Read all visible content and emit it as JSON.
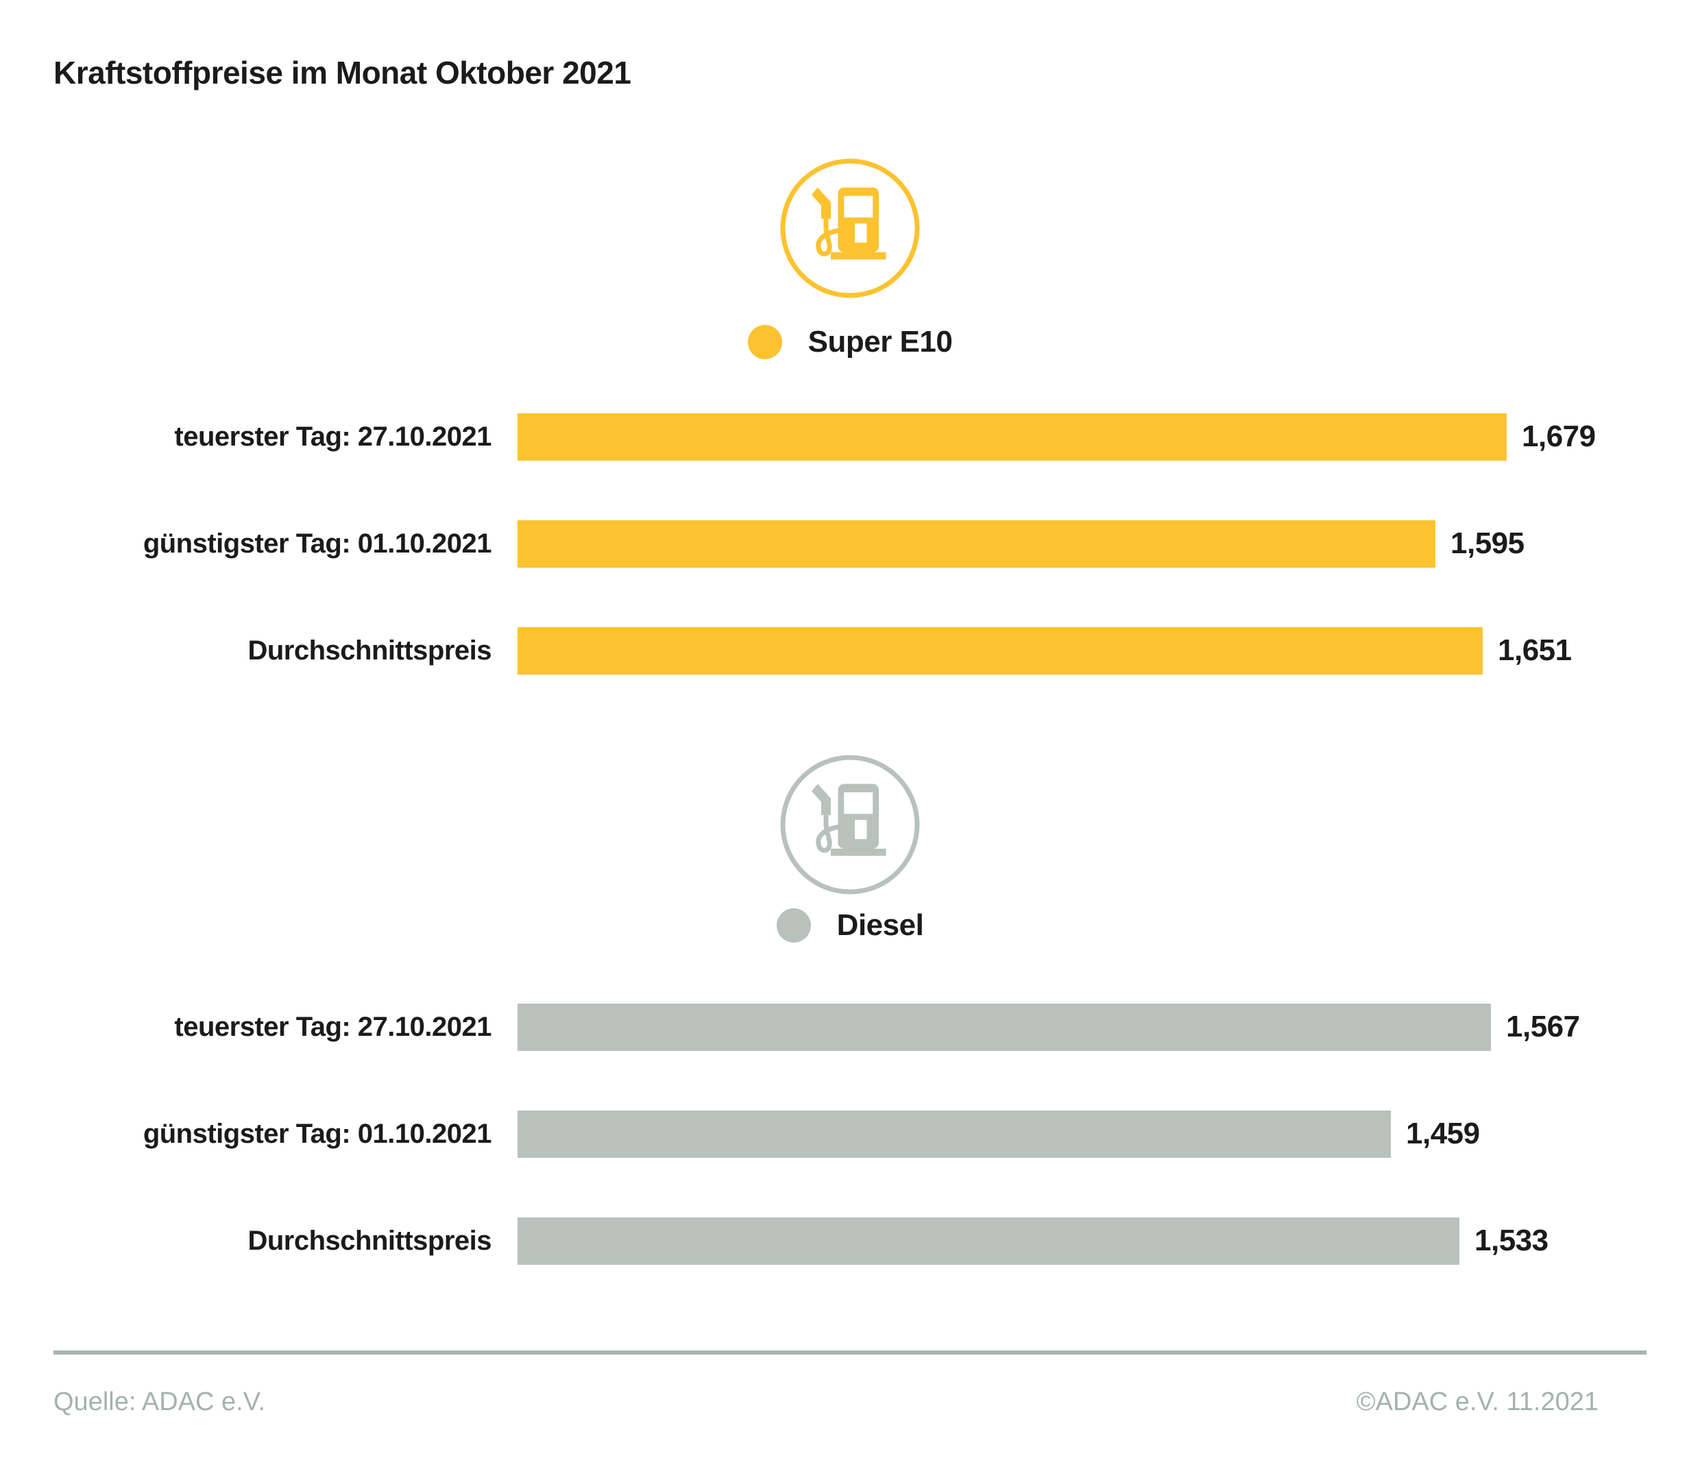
{
  "title": "Kraftstoffpreise im Monat Oktober 2021",
  "footer": {
    "source": "Quelle: ADAC e.V.",
    "copyright": "©ADAC e.V. 11.2021"
  },
  "colors": {
    "super_e10": "#fcc22f",
    "diesel": "#b8c1bc",
    "text": "#1b1b19",
    "footer_gray": "#a3b2ac",
    "separator_gray": "#a7b5af"
  },
  "chart_data": {
    "type": "bar",
    "orientation": "horizontal",
    "title": "Kraftstoffpreise im Monat Oktober 2021",
    "grid": false,
    "x_visual_min": 0.515,
    "groups": [
      {
        "name": "Super E10",
        "color": "#fcc22f",
        "icon": "fuel-pump-icon",
        "categories": [
          "teuerster Tag: 27.10.2021",
          "günstigster Tag: 01.10.2021",
          "Durchschnittspreis"
        ],
        "values": [
          1.679,
          1.595,
          1.651
        ],
        "value_labels": [
          "1,679",
          "1,595",
          "1,651"
        ]
      },
      {
        "name": "Diesel",
        "color": "#b8c1bc",
        "icon": "fuel-pump-icon",
        "categories": [
          "teuerster Tag: 27.10.2021",
          "günstigster Tag: 01.10.2021",
          "Durchschnittspreis"
        ],
        "values": [
          1.567,
          1.459,
          1.533
        ],
        "value_labels": [
          "1,567",
          "1,459",
          "1,533"
        ]
      }
    ]
  }
}
